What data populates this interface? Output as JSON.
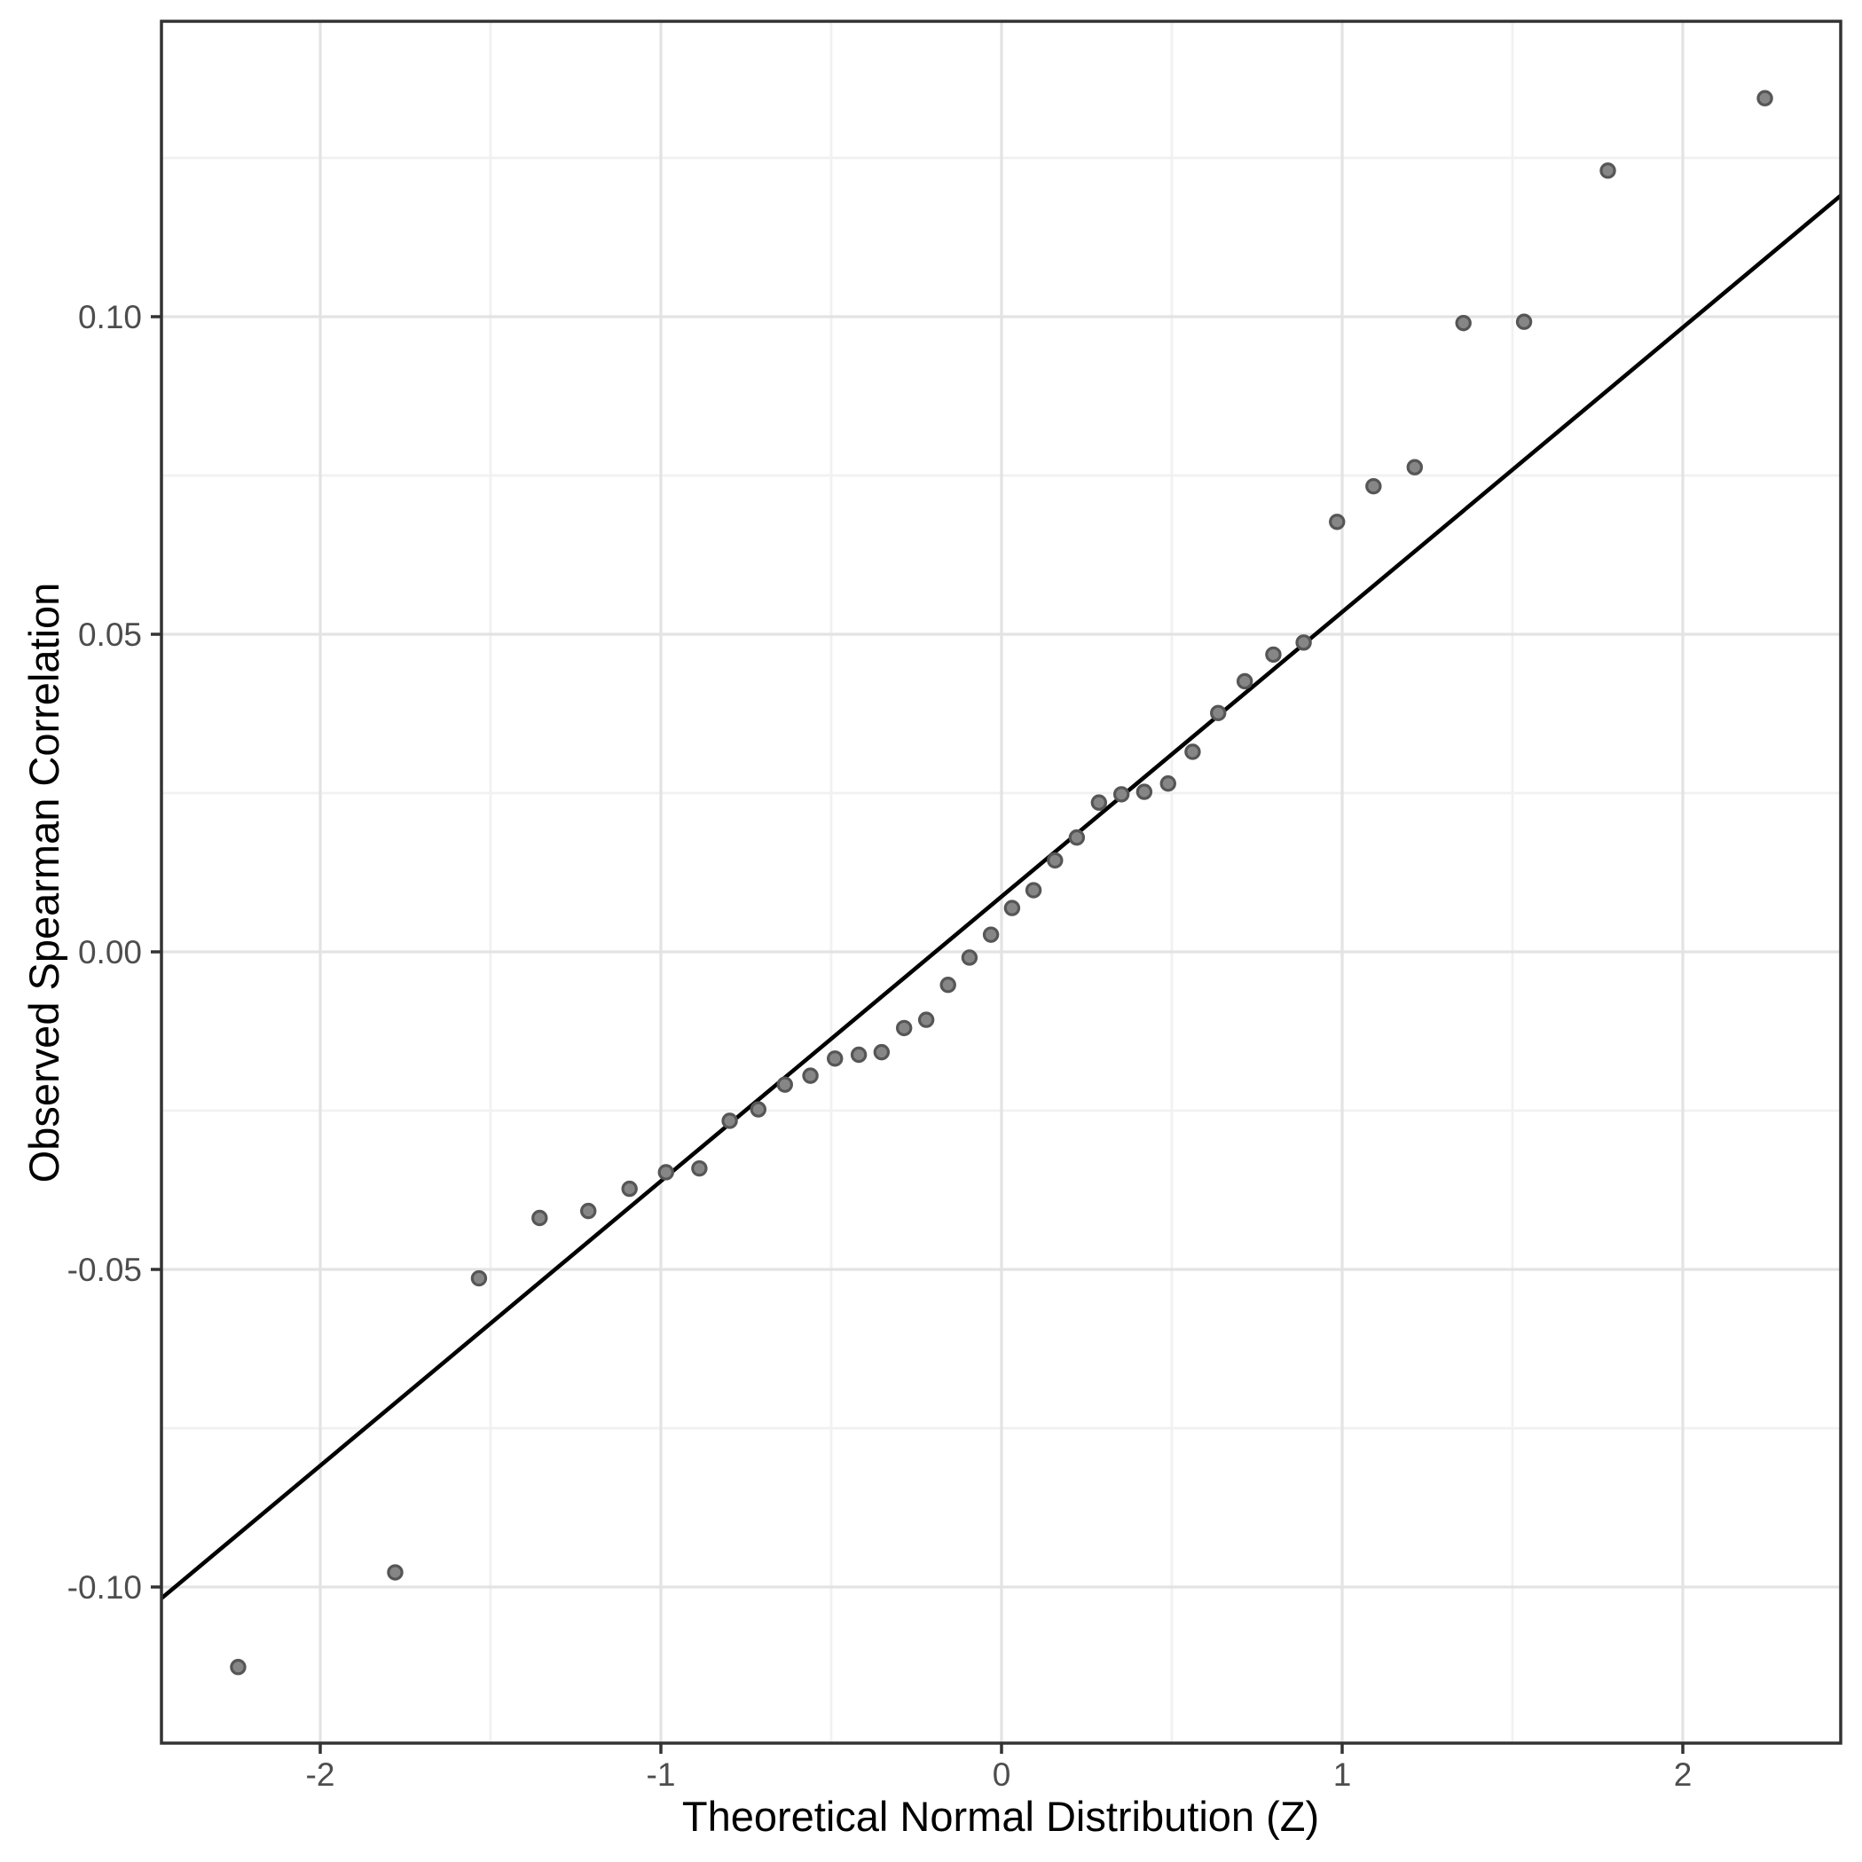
{
  "chart_data": {
    "type": "scatter",
    "title": "",
    "xlabel": "Theoretical Normal Distribution (Z)",
    "ylabel": "Observed Spearman Correlation",
    "xlim": [
      -2.466,
      2.464
    ],
    "ylim": [
      -0.1246,
      0.1465
    ],
    "grid": "on",
    "legend": "none",
    "x_major_ticks": [
      {
        "value": -2,
        "label": "-2"
      },
      {
        "value": -1,
        "label": "-1"
      },
      {
        "value": 0,
        "label": "0"
      },
      {
        "value": 1,
        "label": "1"
      },
      {
        "value": 2,
        "label": "2"
      }
    ],
    "y_major_ticks": [
      {
        "value": 0.1,
        "label": "0.10"
      },
      {
        "value": 0.05,
        "label": "0.05"
      },
      {
        "value": 0.0,
        "label": "0.00"
      },
      {
        "value": -0.05,
        "label": "-0.05"
      },
      {
        "value": -0.1,
        "label": "-0.10"
      }
    ],
    "x_minor_gridlines": [
      -1.5,
      -0.5,
      0.5,
      1.5
    ],
    "y_minor_gridlines": [
      0.125,
      0.075,
      0.025,
      -0.025,
      -0.075
    ],
    "series": [
      {
        "name": "qq-points",
        "marker": "circle",
        "points": [
          [
            -2.241,
            -0.1126
          ],
          [
            -1.78,
            -0.0977
          ],
          [
            -1.534,
            -0.0514
          ],
          [
            -1.356,
            -0.0419
          ],
          [
            -1.213,
            -0.0408
          ],
          [
            -1.092,
            -0.0373
          ],
          [
            -0.985,
            -0.0347
          ],
          [
            -0.887,
            -0.0341
          ],
          [
            -0.798,
            -0.0266
          ],
          [
            -0.714,
            -0.0248
          ],
          [
            -0.636,
            -0.0209
          ],
          [
            -0.561,
            -0.0195
          ],
          [
            -0.489,
            -0.0168
          ],
          [
            -0.419,
            -0.0162
          ],
          [
            -0.352,
            -0.0158
          ],
          [
            -0.286,
            -0.012
          ],
          [
            -0.221,
            -0.0107
          ],
          [
            -0.157,
            -0.0052
          ],
          [
            -0.094,
            -0.0009
          ],
          [
            -0.031,
            0.0027
          ],
          [
            0.031,
            0.0069
          ],
          [
            0.094,
            0.0097
          ],
          [
            0.157,
            0.0144
          ],
          [
            0.221,
            0.018
          ],
          [
            0.286,
            0.0235
          ],
          [
            0.352,
            0.0248
          ],
          [
            0.419,
            0.0252
          ],
          [
            0.489,
            0.0265
          ],
          [
            0.561,
            0.0315
          ],
          [
            0.636,
            0.0376
          ],
          [
            0.714,
            0.0426
          ],
          [
            0.798,
            0.0468
          ],
          [
            0.887,
            0.0487
          ],
          [
            0.985,
            0.0677
          ],
          [
            1.092,
            0.0733
          ],
          [
            1.213,
            0.0763
          ],
          [
            1.356,
            0.099
          ],
          [
            1.534,
            0.0992
          ],
          [
            1.78,
            0.123
          ],
          [
            2.241,
            0.1344
          ]
        ]
      }
    ],
    "reference_line": {
      "slope": 0.0448,
      "intercept": 0.0087
    },
    "colors": {
      "background": "#ffffff",
      "panel_background": "#ffffff",
      "panel_border": "#333333",
      "grid_major": "#e3e3e3",
      "grid_minor": "#f1f1f1",
      "tick_mark": "#333333",
      "tick_label": "#4d4d4d",
      "axis_title": "#000000",
      "point_fill": "#868686",
      "point_stroke": "#565656",
      "line": "#000000"
    }
  }
}
